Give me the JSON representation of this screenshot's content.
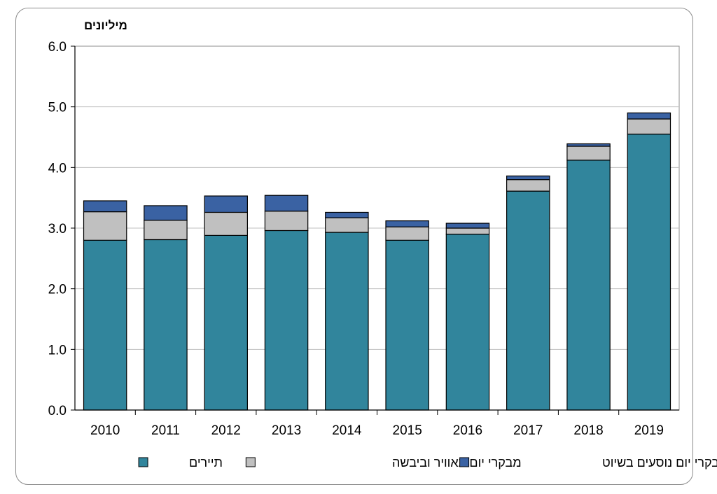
{
  "chart_data": {
    "type": "bar",
    "stacked": true,
    "unit_label": "מיליונים",
    "categories": [
      "2010",
      "2011",
      "2012",
      "2013",
      "2014",
      "2015",
      "2016",
      "2017",
      "2018",
      "2019"
    ],
    "series": [
      {
        "name": "תיירים",
        "color": "#31859c",
        "values": [
          2.8,
          2.81,
          2.88,
          2.96,
          2.93,
          2.8,
          2.9,
          3.61,
          4.12,
          4.55
        ]
      },
      {
        "name": "מבקרי יום באוויר וביבשה",
        "color": "#c0c0c0",
        "values": [
          0.47,
          0.32,
          0.38,
          0.32,
          0.24,
          0.22,
          0.1,
          0.19,
          0.23,
          0.25
        ]
      },
      {
        "name": "מבקרי יום נוסעים בשיוט",
        "color": "#3a62a3",
        "values": [
          0.18,
          0.24,
          0.27,
          0.26,
          0.09,
          0.1,
          0.08,
          0.06,
          0.04,
          0.1
        ]
      }
    ],
    "ylim": [
      0,
      6
    ],
    "yticks": [
      "0.0",
      "1.0",
      "2.0",
      "3.0",
      "4.0",
      "5.0",
      "6.0"
    ],
    "grid": true,
    "legend_position": "bottom"
  }
}
